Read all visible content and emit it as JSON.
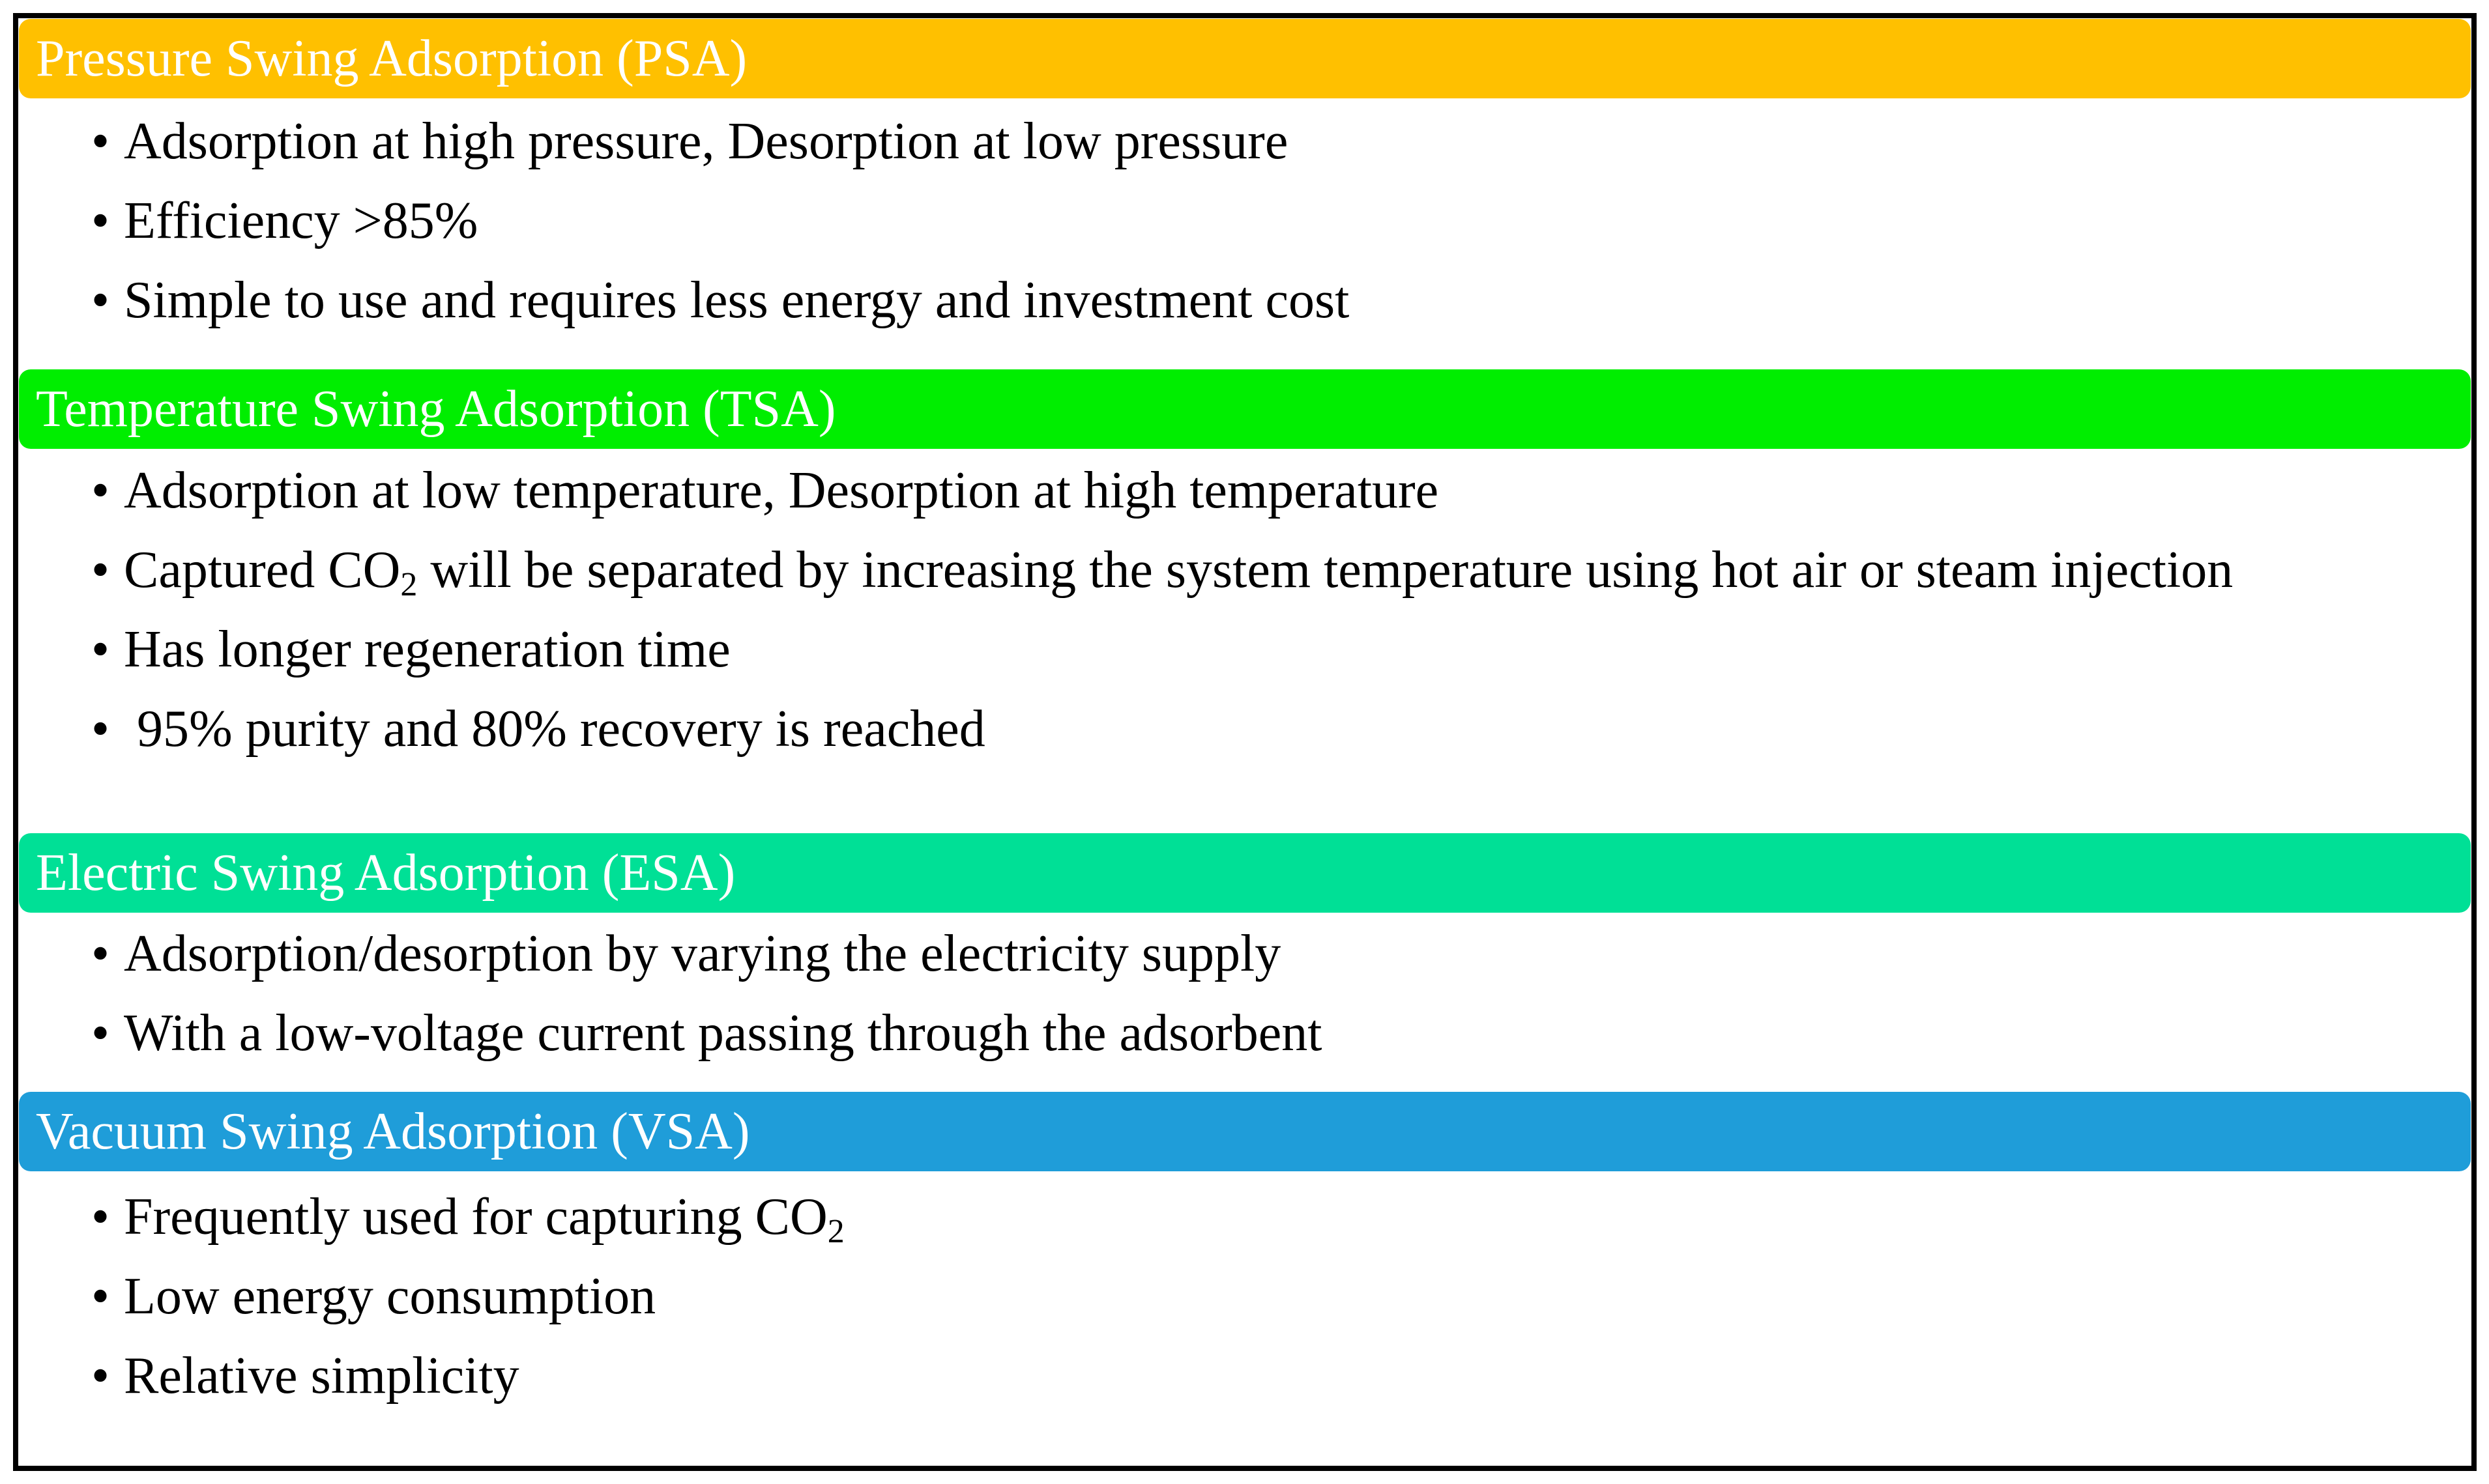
{
  "sections": [
    {
      "title": "Pressure Swing Adsorption (PSA)",
      "color": "#FFC000",
      "items": [
        {
          "text": "Adsorption at high pressure, Desorption at low pressure"
        },
        {
          "text": "Efficiency >85%"
        },
        {
          "text": "Simple to use and requires less energy and investment cost"
        }
      ]
    },
    {
      "title": "Temperature Swing Adsorption (TSA)",
      "color": "#00EE00",
      "items": [
        {
          "text": "Adsorption at low temperature, Desorption at high temperature"
        },
        {
          "text": "Captured CO",
          "sub": "2",
          "post": " will be separated by increasing the system temperature using hot air or steam injection"
        },
        {
          "text": "Has longer regeneration time"
        },
        {
          "text": " 95% purity and 80% recovery is reached"
        }
      ]
    },
    {
      "title": "Electric Swing Adsorption (ESA)",
      "color": "#00E096",
      "items": [
        {
          "text": "Adsorption/desorption by varying the electricity supply"
        },
        {
          "text": "With a low-voltage current passing through the adsorbent"
        }
      ]
    },
    {
      "title": "Vacuum Swing Adsorption (VSA)",
      "color": "#1F9DD9",
      "items": [
        {
          "text": "Frequently used for capturing CO",
          "sub": "2"
        },
        {
          "text": "Low energy consumption"
        },
        {
          "text": "Relative simplicity"
        }
      ]
    }
  ],
  "bullet": "•"
}
